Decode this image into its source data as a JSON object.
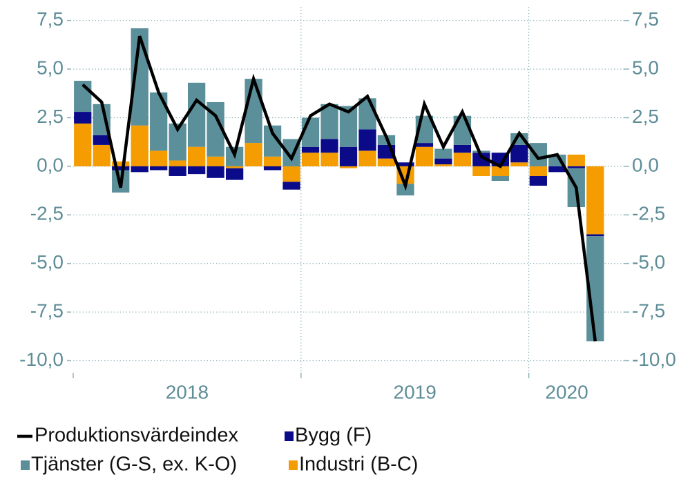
{
  "chart_data": {
    "type": "combo",
    "categories": [
      "2018",
      "2018",
      "2018",
      "2018",
      "2018",
      "2018",
      "2018",
      "2018",
      "2018",
      "2018",
      "2018",
      "2018",
      "2019",
      "2019",
      "2019",
      "2019",
      "2019",
      "2019",
      "2019",
      "2019",
      "2019",
      "2019",
      "2019",
      "2019",
      "2020",
      "2020",
      "2020",
      "2020"
    ],
    "series": [
      {
        "name": "Produktionsvärdeindex",
        "type": "line",
        "color": "#000000",
        "values": [
          4.2,
          3.3,
          -1.1,
          6.7,
          3.8,
          1.9,
          3.4,
          2.6,
          0.6,
          4.5,
          1.7,
          0.4,
          2.6,
          3.2,
          2.8,
          3.6,
          1.5,
          -1.0,
          3.2,
          1.0,
          2.8,
          0.5,
          0.0,
          1.7,
          0.4,
          0.6,
          -1.1,
          -9.0
        ]
      },
      {
        "name": "Bygg (F)",
        "type": "bar",
        "color": "#0b0b8a",
        "values": [
          0.6,
          0.5,
          -0.2,
          -0.3,
          -0.2,
          -0.5,
          -0.4,
          -0.6,
          -0.6,
          0.0,
          -0.2,
          -0.4,
          0.3,
          0.7,
          1.0,
          1.1,
          0.7,
          0.2,
          0.2,
          0.3,
          0.4,
          0.7,
          0.7,
          0.9,
          -0.5,
          -0.3,
          -0.1,
          -0.1
        ]
      },
      {
        "name": "Tjänster (G-S, ex. K-O)",
        "type": "bar",
        "color": "#5b8f99",
        "values": [
          1.6,
          1.6,
          -1.15,
          5.0,
          3.0,
          1.9,
          3.3,
          2.8,
          1.0,
          3.3,
          1.6,
          1.4,
          1.5,
          1.8,
          2.1,
          1.6,
          0.5,
          -0.6,
          1.4,
          0.5,
          1.5,
          0.1,
          -0.25,
          0.6,
          1.2,
          0.6,
          -2.0,
          -5.4
        ]
      },
      {
        "name": "Industri (B-C)",
        "type": "bar",
        "color": "#f59c00",
        "values": [
          2.2,
          1.1,
          0.25,
          2.1,
          0.8,
          0.3,
          1.0,
          0.5,
          -0.1,
          1.2,
          0.5,
          -0.8,
          0.7,
          0.7,
          -0.1,
          0.8,
          0.4,
          -0.9,
          1.0,
          0.1,
          0.7,
          -0.5,
          -0.5,
          0.2,
          -0.5,
          0.0,
          0.6,
          -3.5
        ]
      }
    ],
    "ylim": [
      -10.8,
      8.2
    ],
    "yticks": [
      {
        "value": -10,
        "label": "-10,0"
      },
      {
        "value": -7.5,
        "label": "-7,5"
      },
      {
        "value": -5,
        "label": "-5,0"
      },
      {
        "value": -2.5,
        "label": "-2,5"
      },
      {
        "value": 0,
        "label": "0,0"
      },
      {
        "value": 2.5,
        "label": "2,5"
      },
      {
        "value": 5,
        "label": "5,0"
      },
      {
        "value": 7.5,
        "label": "7,5"
      }
    ],
    "y2lim": [
      -10.8,
      8.2
    ],
    "y2ticks": [
      {
        "value": -10,
        "label": "-10,0"
      },
      {
        "value": -7.5,
        "label": "-7,5"
      },
      {
        "value": -5,
        "label": "-5,0"
      },
      {
        "value": -2.5,
        "label": "-2,5"
      },
      {
        "value": 0,
        "label": "0,0"
      },
      {
        "value": 2.5,
        "label": "2,5"
      },
      {
        "value": 5,
        "label": "5,0"
      },
      {
        "value": 7.5,
        "label": "7,5"
      }
    ],
    "grid": true
  }
}
